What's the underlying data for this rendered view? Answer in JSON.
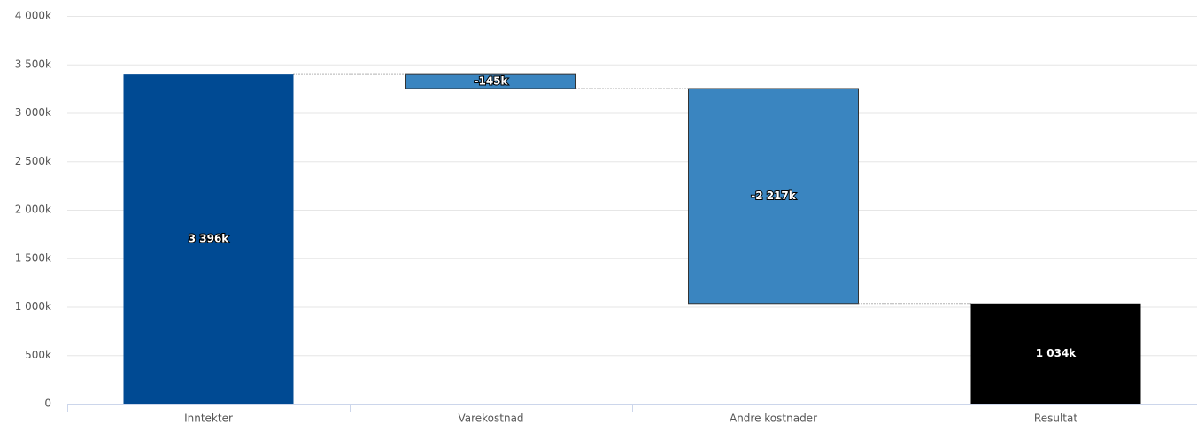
{
  "chart_data": {
    "type": "waterfall",
    "categories": [
      "Inntekter",
      "Varekostnad",
      "Andre kostnader",
      "Resultat"
    ],
    "values": [
      3396,
      -145,
      -2217,
      1034
    ],
    "value_labels": [
      "3 396k",
      "-145k",
      "-2 217k",
      "1 034k"
    ],
    "colors": [
      "#004a93",
      "#3a85c0",
      "#3a85c0",
      "#000000"
    ],
    "ylim": [
      0,
      4000
    ],
    "yticks": [
      0,
      {
        "value": 500,
        "label": "500k"
      },
      {
        "value": 1000,
        "label": "1 000k"
      },
      {
        "value": 1500,
        "label": "1 500k"
      },
      {
        "value": 2000,
        "label": "2 000k"
      },
      {
        "value": 2500,
        "label": "2 500k"
      },
      {
        "value": 3000,
        "label": "3 000k"
      },
      {
        "value": 3500,
        "label": "3 500k"
      },
      {
        "value": 4000,
        "label": "4 000k"
      }
    ],
    "grid": true
  }
}
